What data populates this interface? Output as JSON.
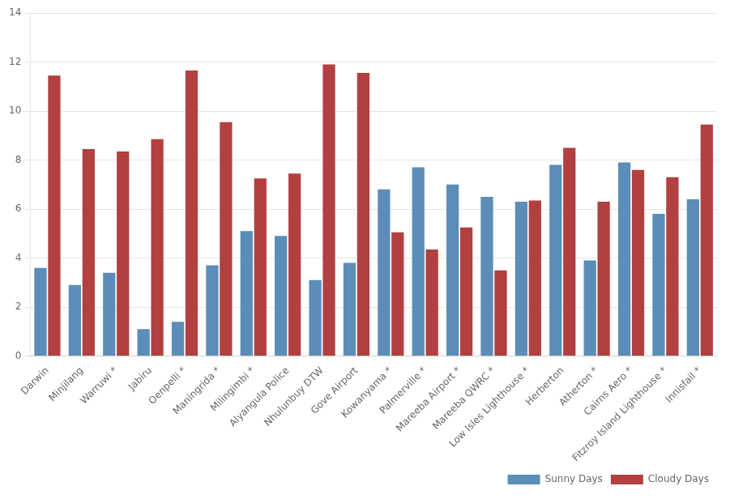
{
  "chart_data": {
    "type": "bar",
    "categories": [
      "Darwin",
      "Minjilang",
      "Warruwi *",
      "Jabiru",
      "Oenpelli *",
      "Maningrida *",
      "Milingimbi *",
      "Alyangula Police",
      "Nhulunbuy DTW",
      "Gove Airport",
      "Kowanyama *",
      "Palmerville *",
      "Mareeba Airport *",
      "Mareeba QWRC *",
      "Low Isles Lighthouse *",
      "Herberton",
      "Atherton *",
      "Cairns Aero *",
      "Fitzroy Island Lighthouse *",
      "Innisfail *"
    ],
    "series": [
      {
        "name": "Sunny Days",
        "color": "#5b8db8",
        "values": [
          3.6,
          2.9,
          3.4,
          1.1,
          1.4,
          3.7,
          5.1,
          4.9,
          3.1,
          3.8,
          6.8,
          7.7,
          7.0,
          6.5,
          6.3,
          7.8,
          3.9,
          7.9,
          5.8,
          6.4
        ]
      },
      {
        "name": "Cloudy Days",
        "color": "#b34040",
        "values": [
          11.45,
          8.45,
          8.35,
          8.85,
          11.65,
          9.55,
          7.25,
          7.45,
          11.9,
          11.55,
          5.05,
          4.35,
          5.25,
          3.5,
          6.35,
          8.5,
          6.3,
          7.6,
          7.3,
          9.45
        ]
      }
    ],
    "ylim": [
      0,
      14
    ],
    "yticks": [
      0,
      2,
      4,
      6,
      8,
      10,
      12,
      14
    ],
    "grid": true,
    "legend": "lower right"
  }
}
